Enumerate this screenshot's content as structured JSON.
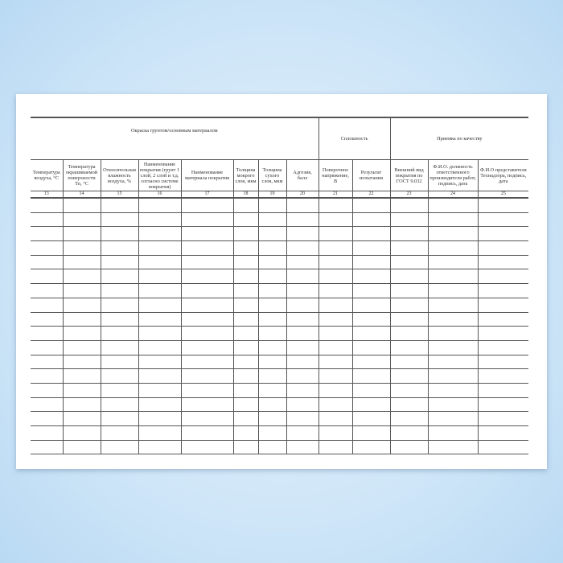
{
  "groups": {
    "painting": "Окраска грунтом/основным материалом",
    "continuity": "Сплошность",
    "acceptance": "Приемка по качеству"
  },
  "columns": [
    {
      "num": "13",
      "label": "Температура воздуха, °С"
    },
    {
      "num": "14",
      "label": "Температура окрашиваемой поверхности Тп, °С"
    },
    {
      "num": "15",
      "label": "Относительная влажность воздуха, %"
    },
    {
      "num": "16",
      "label": "Наименование покрытия (грунт 1 слой, 2 слой и т.д. согласно системе покрытия)"
    },
    {
      "num": "17",
      "label": "Наименование материала покрытия"
    },
    {
      "num": "18",
      "label": "Толщина мокрого слоя, мкм"
    },
    {
      "num": "19",
      "label": "Толщина сухого слоя, мкм"
    },
    {
      "num": "20",
      "label": "Адгезия, балл"
    },
    {
      "num": "21",
      "label": "Поверочное напряжение, В"
    },
    {
      "num": "22",
      "label": "Результат испытания"
    },
    {
      "num": "23",
      "label": "Внешний вид покрытия по ГОСТ 9.032"
    },
    {
      "num": "24",
      "label": "Ф.И.О. должность ответственного производителя работ, подпись, дата"
    },
    {
      "num": "25",
      "label": "Ф.И.О представителя Технадзора, подпись, дата"
    }
  ]
}
